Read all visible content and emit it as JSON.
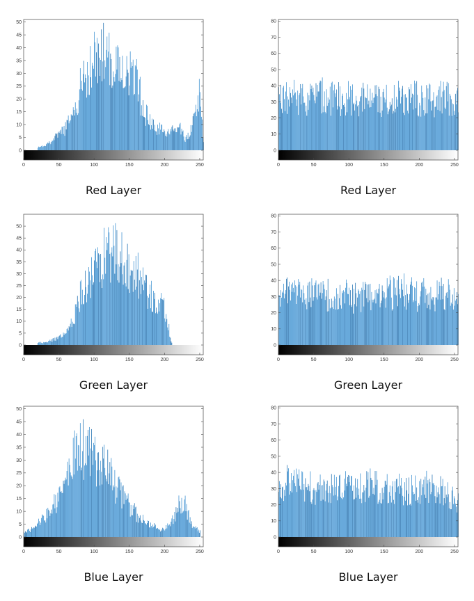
{
  "chart_data": [
    {
      "type": "bar",
      "caption": "Red Layer",
      "xlim": [
        0,
        255
      ],
      "ylim": [
        0,
        51
      ],
      "xticks": [
        0,
        50,
        100,
        150,
        200,
        250
      ],
      "yticks": [
        0,
        5,
        10,
        15,
        20,
        25,
        30,
        35,
        40,
        45,
        50
      ],
      "bar_color": "#3a8fd0",
      "colorbar": "grayscale",
      "x": [
        20,
        30,
        40,
        50,
        60,
        70,
        80,
        90,
        100,
        110,
        120,
        130,
        140,
        150,
        160,
        170,
        180,
        190,
        200,
        210,
        220,
        230,
        240,
        245,
        250,
        255
      ],
      "values": [
        1,
        2,
        4,
        6,
        9,
        14,
        24,
        30,
        36,
        38,
        35,
        34,
        32,
        30,
        27,
        16,
        10,
        8,
        8,
        7,
        9,
        4,
        10,
        17,
        25,
        3
      ]
    },
    {
      "type": "bar",
      "caption": "Red Layer",
      "xlim": [
        0,
        255
      ],
      "ylim": [
        0,
        81
      ],
      "xticks": [
        0,
        50,
        100,
        150,
        200,
        250
      ],
      "yticks": [
        0,
        10,
        20,
        30,
        40,
        50,
        60,
        70,
        80
      ],
      "bar_color": "#3a8fd0",
      "colorbar": "grayscale",
      "x": [
        0,
        20,
        40,
        60,
        80,
        100,
        120,
        140,
        160,
        180,
        200,
        220,
        240,
        255
      ],
      "values": [
        30,
        33,
        32,
        34,
        31,
        33,
        31,
        32,
        31,
        33,
        32,
        31,
        33,
        30
      ]
    },
    {
      "type": "bar",
      "caption": "Green Layer",
      "xlim": [
        0,
        255
      ],
      "ylim": [
        0,
        55
      ],
      "xticks": [
        0,
        50,
        100,
        150,
        200,
        250
      ],
      "yticks": [
        0,
        5,
        10,
        15,
        20,
        25,
        30,
        35,
        40,
        45,
        50
      ],
      "bar_color": "#3a8fd0",
      "colorbar": "grayscale",
      "x": [
        20,
        30,
        40,
        50,
        60,
        70,
        80,
        90,
        100,
        110,
        120,
        130,
        140,
        150,
        160,
        170,
        180,
        190,
        200,
        210
      ],
      "values": [
        1,
        1,
        2,
        3,
        5,
        10,
        20,
        27,
        30,
        36,
        40,
        38,
        35,
        33,
        30,
        25,
        22,
        18,
        15,
        1
      ]
    },
    {
      "type": "bar",
      "caption": "Green Layer",
      "xlim": [
        0,
        255
      ],
      "ylim": [
        0,
        81
      ],
      "xticks": [
        0,
        50,
        100,
        150,
        200,
        250
      ],
      "yticks": [
        0,
        10,
        20,
        30,
        40,
        50,
        60,
        70,
        80
      ],
      "bar_color": "#3a8fd0",
      "colorbar": "grayscale",
      "x": [
        0,
        20,
        40,
        60,
        80,
        100,
        120,
        140,
        160,
        180,
        200,
        220,
        240,
        255
      ],
      "values": [
        32,
        31,
        30,
        32,
        31,
        30,
        29,
        31,
        32,
        33,
        31,
        30,
        32,
        29
      ]
    },
    {
      "type": "bar",
      "caption": "Blue Layer",
      "xlim": [
        0,
        255
      ],
      "ylim": [
        0,
        51
      ],
      "xticks": [
        0,
        50,
        100,
        150,
        200,
        250
      ],
      "yticks": [
        0,
        5,
        10,
        15,
        20,
        25,
        30,
        35,
        40,
        45,
        50
      ],
      "bar_color": "#3a8fd0",
      "colorbar": "grayscale",
      "x": [
        0,
        10,
        20,
        30,
        40,
        50,
        60,
        70,
        80,
        90,
        100,
        110,
        120,
        130,
        140,
        150,
        160,
        170,
        180,
        190,
        200,
        210,
        220,
        230,
        240,
        250
      ],
      "values": [
        2,
        3,
        5,
        8,
        12,
        15,
        22,
        30,
        35,
        33,
        30,
        28,
        25,
        20,
        16,
        12,
        9,
        7,
        5,
        3,
        3,
        6,
        12,
        12,
        4,
        2
      ]
    },
    {
      "type": "bar",
      "caption": "Blue Layer",
      "xlim": [
        0,
        255
      ],
      "ylim": [
        0,
        81
      ],
      "xticks": [
        0,
        50,
        100,
        150,
        200,
        250
      ],
      "yticks": [
        0,
        10,
        20,
        30,
        40,
        50,
        60,
        70,
        80
      ],
      "bar_color": "#3a8fd0",
      "colorbar": "grayscale",
      "x": [
        0,
        20,
        40,
        60,
        80,
        100,
        120,
        140,
        160,
        180,
        200,
        220,
        240,
        255
      ],
      "values": [
        35,
        32,
        31,
        30,
        31,
        30,
        32,
        31,
        30,
        29,
        31,
        30,
        28,
        22
      ]
    }
  ]
}
